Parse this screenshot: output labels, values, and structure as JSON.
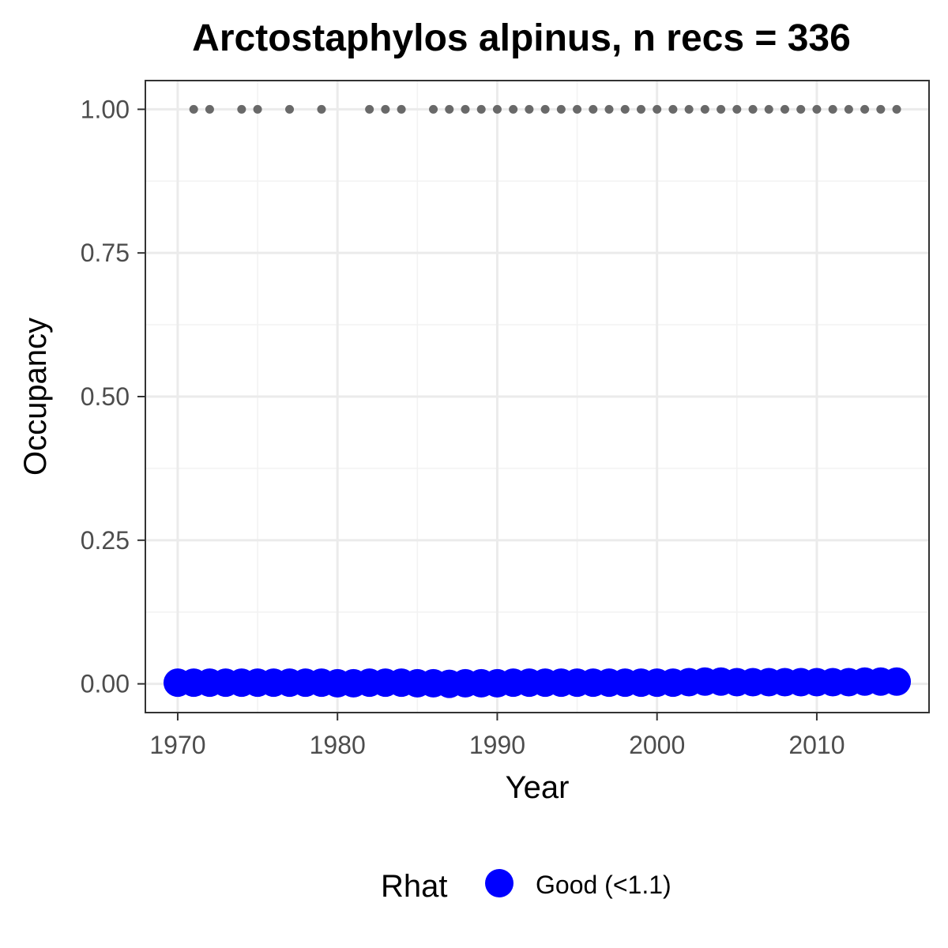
{
  "chart_data": {
    "type": "scatter",
    "title": "Arctostaphylos alpinus, n recs = 336",
    "xlabel": "Year",
    "ylabel": "Occupancy",
    "xlim": [
      1970,
      2015
    ],
    "ylim": [
      0,
      1
    ],
    "x_ticks": [
      1970,
      1980,
      1990,
      2000,
      2010
    ],
    "y_ticks": [
      "0.00",
      "0.25",
      "0.50",
      "0.75",
      "1.00"
    ],
    "grid": true,
    "legend": {
      "title": "Rhat",
      "position": "bottom",
      "entries": [
        {
          "label": "Good (<1.1)",
          "color": "#0000ff"
        }
      ]
    },
    "series": [
      {
        "role": "occupancy",
        "color": "#0000ff",
        "x": [
          1970,
          1971,
          1972,
          1973,
          1974,
          1975,
          1976,
          1977,
          1978,
          1979,
          1980,
          1981,
          1982,
          1983,
          1984,
          1985,
          1986,
          1987,
          1988,
          1989,
          1990,
          1991,
          1992,
          1993,
          1994,
          1995,
          1996,
          1997,
          1998,
          1999,
          2000,
          2001,
          2002,
          2003,
          2004,
          2005,
          2006,
          2007,
          2008,
          2009,
          2010,
          2011,
          2012,
          2013,
          2014,
          2015
        ],
        "y": [
          0.002,
          0.002,
          0.002,
          0.002,
          0.002,
          0.002,
          0.002,
          0.002,
          0.002,
          0.002,
          0.001,
          0.001,
          0.002,
          0.002,
          0.002,
          0.001,
          0.001,
          0.0,
          0.001,
          0.001,
          0.001,
          0.002,
          0.002,
          0.002,
          0.002,
          0.002,
          0.002,
          0.002,
          0.002,
          0.002,
          0.002,
          0.002,
          0.003,
          0.004,
          0.004,
          0.003,
          0.003,
          0.003,
          0.003,
          0.003,
          0.003,
          0.003,
          0.003,
          0.004,
          0.004,
          0.004
        ]
      },
      {
        "role": "observed records",
        "color": "#696969",
        "x": [
          1971,
          1972,
          1974,
          1975,
          1977,
          1979,
          1982,
          1983,
          1984,
          1986,
          1987,
          1988,
          1989,
          1990,
          1991,
          1992,
          1993,
          1994,
          1995,
          1996,
          1997,
          1998,
          1999,
          2000,
          2001,
          2002,
          2003,
          2004,
          2005,
          2006,
          2007,
          2008,
          2009,
          2010,
          2011,
          2012,
          2013,
          2014,
          2015
        ],
        "y": [
          1,
          1,
          1,
          1,
          1,
          1,
          1,
          1,
          1,
          1,
          1,
          1,
          1,
          1,
          1,
          1,
          1,
          1,
          1,
          1,
          1,
          1,
          1,
          1,
          1,
          1,
          1,
          1,
          1,
          1,
          1,
          1,
          1,
          1,
          1,
          1,
          1,
          1,
          1
        ]
      }
    ]
  }
}
